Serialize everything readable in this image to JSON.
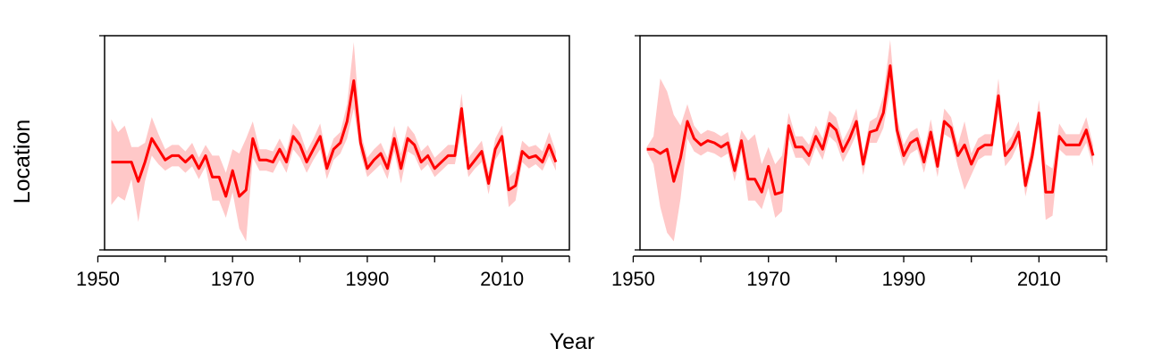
{
  "chart_data": {
    "type": "area",
    "xlabel": "Year",
    "ylabel": "Location",
    "xlim": [
      1951,
      2020
    ],
    "ylim": [
      0,
      1
    ],
    "x_ticks": [
      1950,
      1960,
      1970,
      1980,
      1990,
      2000,
      2010,
      2020
    ],
    "x_tick_labels": [
      "1950",
      "1970",
      "1990",
      "2010"
    ],
    "y_ticks_labeled": false,
    "colors": {
      "line": "#ff0000",
      "band": "#ffc8c8",
      "axis": "#000000"
    },
    "panels": [
      {
        "years": [
          1952,
          1953,
          1954,
          1955,
          1956,
          1957,
          1958,
          1959,
          1960,
          1961,
          1962,
          1963,
          1964,
          1965,
          1966,
          1967,
          1968,
          1969,
          1970,
          1971,
          1972,
          1973,
          1974,
          1975,
          1976,
          1977,
          1978,
          1979,
          1980,
          1981,
          1982,
          1983,
          1984,
          1985,
          1986,
          1987,
          1988,
          1989,
          1990,
          1991,
          1992,
          1993,
          1994,
          1995,
          1996,
          1997,
          1998,
          1999,
          2000,
          2001,
          2002,
          2003,
          2004,
          2005,
          2006,
          2007,
          2008,
          2009,
          2010,
          2011,
          2012,
          2013,
          2014,
          2015,
          2016,
          2017,
          2018
        ],
        "values": [
          0.41,
          0.41,
          0.41,
          0.41,
          0.32,
          0.41,
          0.52,
          0.47,
          0.42,
          0.44,
          0.44,
          0.41,
          0.44,
          0.38,
          0.44,
          0.34,
          0.34,
          0.25,
          0.37,
          0.25,
          0.28,
          0.52,
          0.42,
          0.42,
          0.41,
          0.47,
          0.41,
          0.53,
          0.49,
          0.41,
          0.47,
          0.53,
          0.38,
          0.47,
          0.5,
          0.6,
          0.79,
          0.5,
          0.38,
          0.42,
          0.45,
          0.38,
          0.52,
          0.38,
          0.52,
          0.49,
          0.41,
          0.44,
          0.38,
          0.41,
          0.44,
          0.44,
          0.66,
          0.38,
          0.42,
          0.46,
          0.31,
          0.47,
          0.53,
          0.28,
          0.3,
          0.46,
          0.43,
          0.44,
          0.41,
          0.49,
          0.41
        ],
        "lower": [
          0.21,
          0.25,
          0.23,
          0.33,
          0.13,
          0.32,
          0.44,
          0.4,
          0.37,
          0.39,
          0.39,
          0.36,
          0.39,
          0.33,
          0.39,
          0.23,
          0.23,
          0.15,
          0.27,
          0.1,
          0.04,
          0.43,
          0.37,
          0.37,
          0.36,
          0.42,
          0.36,
          0.47,
          0.43,
          0.36,
          0.42,
          0.47,
          0.33,
          0.42,
          0.45,
          0.52,
          0.66,
          0.45,
          0.34,
          0.37,
          0.4,
          0.33,
          0.46,
          0.31,
          0.46,
          0.44,
          0.37,
          0.4,
          0.34,
          0.37,
          0.4,
          0.4,
          0.55,
          0.34,
          0.38,
          0.41,
          0.26,
          0.42,
          0.47,
          0.2,
          0.23,
          0.41,
          0.38,
          0.4,
          0.37,
          0.44,
          0.37
        ],
        "upper": [
          0.61,
          0.55,
          0.58,
          0.48,
          0.48,
          0.5,
          0.62,
          0.54,
          0.47,
          0.49,
          0.49,
          0.46,
          0.5,
          0.43,
          0.49,
          0.44,
          0.44,
          0.36,
          0.47,
          0.45,
          0.52,
          0.6,
          0.47,
          0.47,
          0.46,
          0.52,
          0.46,
          0.59,
          0.55,
          0.46,
          0.52,
          0.59,
          0.43,
          0.52,
          0.55,
          0.68,
          0.97,
          0.55,
          0.43,
          0.47,
          0.5,
          0.43,
          0.58,
          0.45,
          0.58,
          0.54,
          0.46,
          0.49,
          0.43,
          0.46,
          0.49,
          0.49,
          0.73,
          0.43,
          0.47,
          0.51,
          0.36,
          0.52,
          0.58,
          0.34,
          0.37,
          0.51,
          0.48,
          0.49,
          0.46,
          0.55,
          0.46
        ]
      },
      {
        "years": [
          1952,
          1953,
          1954,
          1955,
          1956,
          1957,
          1958,
          1959,
          1960,
          1961,
          1962,
          1963,
          1964,
          1965,
          1966,
          1967,
          1968,
          1969,
          1970,
          1971,
          1972,
          1973,
          1974,
          1975,
          1976,
          1977,
          1978,
          1979,
          1980,
          1981,
          1982,
          1983,
          1984,
          1985,
          1986,
          1987,
          1988,
          1989,
          1990,
          1991,
          1992,
          1993,
          1994,
          1995,
          1996,
          1997,
          1998,
          1999,
          2000,
          2001,
          2002,
          2003,
          2004,
          2005,
          2006,
          2007,
          2008,
          2009,
          2010,
          2011,
          2012,
          2013,
          2014,
          2015,
          2016,
          2017,
          2018
        ],
        "values": [
          0.47,
          0.47,
          0.45,
          0.47,
          0.32,
          0.43,
          0.6,
          0.52,
          0.49,
          0.51,
          0.5,
          0.48,
          0.5,
          0.37,
          0.51,
          0.33,
          0.33,
          0.27,
          0.39,
          0.26,
          0.27,
          0.58,
          0.48,
          0.48,
          0.44,
          0.53,
          0.47,
          0.59,
          0.56,
          0.46,
          0.52,
          0.6,
          0.4,
          0.55,
          0.56,
          0.64,
          0.86,
          0.56,
          0.44,
          0.5,
          0.52,
          0.41,
          0.55,
          0.39,
          0.6,
          0.57,
          0.44,
          0.49,
          0.4,
          0.47,
          0.49,
          0.49,
          0.72,
          0.44,
          0.48,
          0.55,
          0.3,
          0.44,
          0.64,
          0.27,
          0.27,
          0.53,
          0.49,
          0.49,
          0.49,
          0.56,
          0.44
        ],
        "lower": [
          0.46,
          0.4,
          0.2,
          0.08,
          0.04,
          0.24,
          0.52,
          0.46,
          0.44,
          0.46,
          0.45,
          0.43,
          0.45,
          0.32,
          0.46,
          0.23,
          0.23,
          0.19,
          0.29,
          0.15,
          0.18,
          0.52,
          0.43,
          0.43,
          0.39,
          0.48,
          0.42,
          0.53,
          0.5,
          0.41,
          0.47,
          0.54,
          0.35,
          0.5,
          0.5,
          0.57,
          0.75,
          0.5,
          0.39,
          0.45,
          0.47,
          0.36,
          0.49,
          0.34,
          0.54,
          0.52,
          0.39,
          0.28,
          0.35,
          0.42,
          0.44,
          0.44,
          0.64,
          0.39,
          0.43,
          0.5,
          0.25,
          0.39,
          0.58,
          0.14,
          0.16,
          0.47,
          0.44,
          0.44,
          0.44,
          0.5,
          0.39
        ],
        "upper": [
          0.48,
          0.53,
          0.8,
          0.74,
          0.63,
          0.58,
          0.68,
          0.58,
          0.54,
          0.56,
          0.55,
          0.53,
          0.55,
          0.42,
          0.56,
          0.51,
          0.54,
          0.4,
          0.48,
          0.4,
          0.44,
          0.64,
          0.53,
          0.53,
          0.49,
          0.58,
          0.52,
          0.65,
          0.62,
          0.51,
          0.57,
          0.66,
          0.45,
          0.6,
          0.62,
          0.72,
          0.98,
          0.62,
          0.49,
          0.55,
          0.57,
          0.46,
          0.61,
          0.44,
          0.66,
          0.62,
          0.49,
          0.6,
          0.45,
          0.52,
          0.54,
          0.54,
          0.8,
          0.49,
          0.53,
          0.6,
          0.35,
          0.49,
          0.7,
          0.4,
          0.38,
          0.59,
          0.54,
          0.54,
          0.54,
          0.62,
          0.49
        ]
      }
    ]
  }
}
